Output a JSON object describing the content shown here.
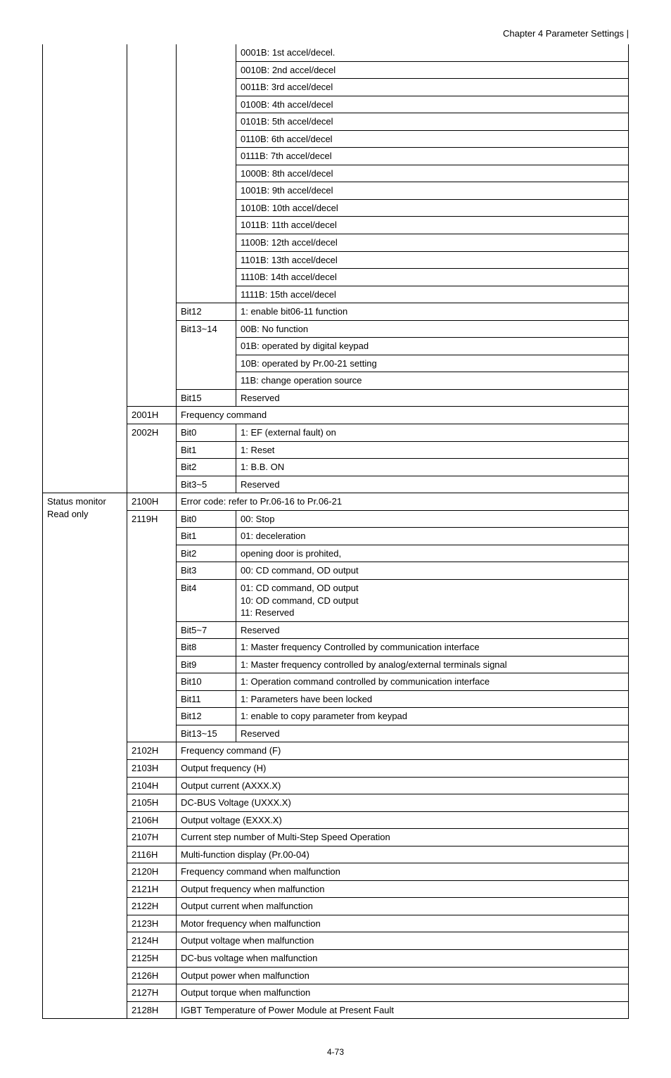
{
  "header": {
    "right": "Chapter  4  Parameter  Settings |"
  },
  "footer": {
    "page": "4-73"
  },
  "sections": [
    {
      "section_label": "",
      "addr": "",
      "rows": [
        {
          "bit": "",
          "desc": "0001B: 1st accel/decel."
        },
        {
          "bit": "",
          "desc": "0010B: 2nd accel/decel"
        },
        {
          "bit": "",
          "desc": "0011B: 3rd accel/decel"
        },
        {
          "bit": "",
          "desc": "0100B: 4th accel/decel"
        },
        {
          "bit": "",
          "desc": "0101B: 5th accel/decel"
        },
        {
          "bit": "",
          "desc": "0110B: 6th accel/decel"
        },
        {
          "bit": "",
          "desc": "0111B: 7th accel/decel"
        },
        {
          "bit": "",
          "desc": "1000B: 8th accel/decel"
        },
        {
          "bit": "",
          "desc": "1001B: 9th accel/decel"
        },
        {
          "bit": "",
          "desc": "1010B: 10th accel/decel"
        },
        {
          "bit": "",
          "desc": "1011B: 11th accel/decel"
        },
        {
          "bit": "",
          "desc": "1100B: 12th accel/decel"
        },
        {
          "bit": "",
          "desc": "1101B: 13th accel/decel"
        },
        {
          "bit": "",
          "desc": "1110B: 14th accel/decel"
        },
        {
          "bit": "",
          "desc": "1111B: 15th accel/decel"
        },
        {
          "bit": "Bit12",
          "desc": "1: enable bit06-11 function"
        },
        {
          "bit": "Bit13~14",
          "desc": "00B: No function"
        },
        {
          "bit": "",
          "desc": "01B: operated by digital keypad"
        },
        {
          "bit": "",
          "desc": "10B: operated by Pr.00-21 setting"
        },
        {
          "bit": "",
          "desc": "11B: change operation source"
        },
        {
          "bit": "Bit15",
          "desc": "Reserved"
        }
      ]
    },
    {
      "addr": "2001H",
      "full_row": "Frequency command"
    },
    {
      "addr": "2002H",
      "rows": [
        {
          "bit": "Bit0",
          "desc": "1: EF (external fault) on"
        },
        {
          "bit": "Bit1",
          "desc": "1: Reset"
        },
        {
          "bit": "Bit2",
          "desc": "1: B.B. ON"
        },
        {
          "bit": "Bit3~5",
          "desc": "Reserved"
        }
      ]
    },
    {
      "section_label": "Status monitor\nRead only",
      "addr": "2100H",
      "full_row": "Error code: refer to Pr.06-16 to Pr.06-21"
    },
    {
      "addr": "2119H",
      "rows": [
        {
          "bit": "Bit0",
          "desc": "00: Stop"
        },
        {
          "bit": "Bit1",
          "desc": "01: deceleration"
        },
        {
          "bit": "Bit2",
          "desc": "opening door is prohited,"
        },
        {
          "bit": "Bit3",
          "desc": "00: CD command, OD output"
        },
        {
          "bit": "Bit4",
          "desc": "01: CD command, OD output\n10: OD command, CD output\n11: Reserved"
        },
        {
          "bit": "Bit5~7",
          "desc": "Reserved"
        },
        {
          "bit": "Bit8",
          "desc": "1: Master frequency Controlled by communication interface"
        },
        {
          "bit": "Bit9",
          "desc": "1: Master frequency controlled by analog/external terminals signal"
        },
        {
          "bit": "Bit10",
          "desc": "1: Operation command controlled by communication interface"
        },
        {
          "bit": "Bit11",
          "desc": "1: Parameters have been locked"
        },
        {
          "bit": "Bit12",
          "desc": "1: enable to copy parameter from keypad"
        },
        {
          "bit": "Bit13~15",
          "desc": "Reserved"
        }
      ]
    },
    {
      "addr": "2102H",
      "full_row": "Frequency command (F)"
    },
    {
      "addr": "2103H",
      "full_row": "Output frequency (H)"
    },
    {
      "addr": "2104H",
      "full_row": "Output current (AXXX.X)"
    },
    {
      "addr": "2105H",
      "full_row": "DC-BUS Voltage (UXXX.X)"
    },
    {
      "addr": "2106H",
      "full_row": "Output voltage (EXXX.X)"
    },
    {
      "addr": "2107H",
      "full_row": "Current step number of Multi-Step Speed Operation"
    },
    {
      "addr": "2116H",
      "full_row": "Multi-function display (Pr.00-04)"
    },
    {
      "addr": "2120H",
      "full_row": "Frequency command when malfunction"
    },
    {
      "addr": "2121H",
      "full_row": "Output frequency when malfunction"
    },
    {
      "addr": "2122H",
      "full_row": "Output current when malfunction"
    },
    {
      "addr": "2123H",
      "full_row": "Motor frequency when malfunction"
    },
    {
      "addr": "2124H",
      "full_row": "Output voltage when malfunction"
    },
    {
      "addr": "2125H",
      "full_row": "DC-bus voltage when malfunction"
    },
    {
      "addr": "2126H",
      "full_row": "Output power when malfunction"
    },
    {
      "addr": "2127H",
      "full_row": "Output torque when malfunction"
    },
    {
      "addr": "2128H",
      "full_row": "IGBT Temperature of Power Module at Present Fault"
    }
  ]
}
